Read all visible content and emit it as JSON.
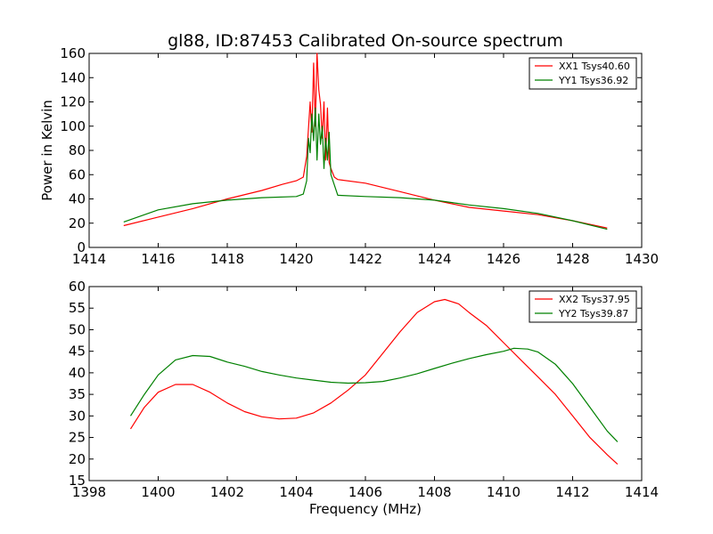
{
  "chart_data": [
    {
      "type": "line",
      "title": "gl88, ID:87453 Calibrated On-source spectrum",
      "xlabel": "",
      "ylabel": "Power in Kelvin",
      "xlim": [
        1414,
        1430
      ],
      "ylim": [
        0,
        160
      ],
      "xticks": [
        "1414",
        "1416",
        "1418",
        "1420",
        "1422",
        "1424",
        "1426",
        "1428",
        "1430"
      ],
      "yticks": [
        "0",
        "20",
        "40",
        "60",
        "80",
        "100",
        "120",
        "140",
        "160"
      ],
      "legend_position": "top-right",
      "grid": false,
      "series": [
        {
          "name": "XX1 Tsys40.60",
          "color": "#ff0000",
          "x": [
            1415.0,
            1416.0,
            1417.0,
            1418.0,
            1419.0,
            1419.6,
            1420.0,
            1420.2,
            1420.3,
            1420.4,
            1420.45,
            1420.5,
            1420.55,
            1420.6,
            1420.65,
            1420.7,
            1420.75,
            1420.8,
            1420.85,
            1420.9,
            1420.95,
            1421.0,
            1421.1,
            1421.2,
            1422.0,
            1423.0,
            1424.0,
            1425.0,
            1426.0,
            1427.0,
            1428.0,
            1429.0
          ],
          "y": [
            18,
            25,
            32,
            40,
            47,
            52,
            55,
            58,
            75,
            120,
            95,
            152,
            100,
            160,
            130,
            118,
            90,
            120,
            72,
            115,
            70,
            65,
            58,
            56,
            53,
            46,
            39,
            33,
            30,
            27,
            22,
            16
          ]
        },
        {
          "name": "YY1 Tsys36.92",
          "color": "#008000",
          "x": [
            1415.0,
            1416.0,
            1417.0,
            1418.0,
            1419.0,
            1420.0,
            1420.2,
            1420.3,
            1420.35,
            1420.4,
            1420.45,
            1420.5,
            1420.55,
            1420.6,
            1420.65,
            1420.7,
            1420.75,
            1420.8,
            1420.85,
            1420.9,
            1420.95,
            1421.0,
            1421.2,
            1422.0,
            1423.0,
            1424.0,
            1425.0,
            1426.0,
            1427.0,
            1428.0,
            1429.0
          ],
          "y": [
            21,
            31,
            36,
            39,
            41,
            42,
            44,
            55,
            90,
            78,
            110,
            88,
            115,
            72,
            110,
            85,
            100,
            65,
            90,
            72,
            95,
            60,
            43,
            42,
            41,
            39,
            35,
            32,
            28,
            22,
            15
          ]
        }
      ]
    },
    {
      "type": "line",
      "title": "",
      "xlabel": "Frequency (MHz)",
      "ylabel": "",
      "xlim": [
        1398,
        1414
      ],
      "ylim": [
        15,
        60
      ],
      "xticks": [
        "1398",
        "1400",
        "1402",
        "1404",
        "1406",
        "1408",
        "1410",
        "1412",
        "1414"
      ],
      "yticks": [
        "15",
        "20",
        "25",
        "30",
        "35",
        "40",
        "45",
        "50",
        "55",
        "60"
      ],
      "legend_position": "top-right",
      "grid": false,
      "series": [
        {
          "name": "XX2 Tsys37.95",
          "color": "#ff0000",
          "x": [
            1399.2,
            1399.6,
            1400.0,
            1400.5,
            1401.0,
            1401.5,
            1402.0,
            1402.5,
            1403.0,
            1403.5,
            1404.0,
            1404.5,
            1405.0,
            1405.5,
            1406.0,
            1406.5,
            1407.0,
            1407.5,
            1408.0,
            1408.3,
            1408.7,
            1409.0,
            1409.5,
            1410.0,
            1410.5,
            1411.0,
            1411.5,
            1412.0,
            1412.5,
            1413.0,
            1413.3
          ],
          "y": [
            27,
            32,
            35.5,
            37.3,
            37.3,
            35.5,
            33,
            31,
            29.8,
            29.3,
            29.5,
            30.7,
            33,
            36,
            39.5,
            44.5,
            49.5,
            54,
            56.5,
            57,
            56,
            54,
            51,
            47,
            43,
            39,
            35,
            30,
            25,
            21,
            18.8
          ]
        },
        {
          "name": "YY2 Tsys39.87",
          "color": "#008000",
          "x": [
            1399.2,
            1399.6,
            1400.0,
            1400.5,
            1401.0,
            1401.5,
            1402.0,
            1402.5,
            1403.0,
            1403.5,
            1404.0,
            1404.5,
            1405.0,
            1405.5,
            1406.0,
            1406.5,
            1407.0,
            1407.5,
            1408.0,
            1408.5,
            1409.0,
            1409.5,
            1410.0,
            1410.3,
            1410.7,
            1411.0,
            1411.5,
            1412.0,
            1412.5,
            1413.0,
            1413.3
          ],
          "y": [
            30,
            35,
            39.5,
            43,
            44,
            43.8,
            42.5,
            41.5,
            40.3,
            39.5,
            38.8,
            38.3,
            37.8,
            37.6,
            37.7,
            38,
            38.8,
            39.8,
            41,
            42.2,
            43.3,
            44.2,
            45,
            45.7,
            45.5,
            44.8,
            42,
            37.5,
            32,
            26.5,
            24
          ]
        }
      ]
    }
  ]
}
